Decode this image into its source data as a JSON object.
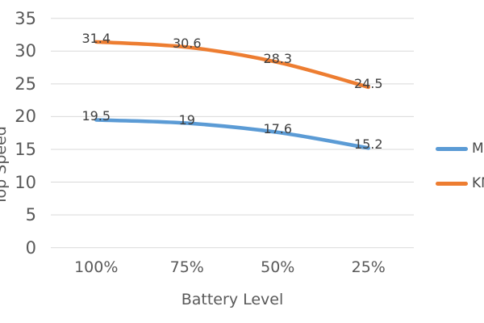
{
  "chart_data": {
    "type": "line",
    "xlabel": "Battery Level",
    "ylabel": "Top Speed",
    "categories": [
      "100%",
      "75%",
      "50%",
      "25%"
    ],
    "series": [
      {
        "name": "MPH",
        "values": [
          19.5,
          19,
          17.6,
          15.2
        ],
        "labels": [
          "19.5",
          "19",
          "17.6",
          "15.2"
        ],
        "color": "#5B9BD5"
      },
      {
        "name": "KMH",
        "values": [
          31.4,
          30.6,
          28.3,
          24.5
        ],
        "labels": [
          "31.4",
          "30.6",
          "28.3",
          "24.5"
        ],
        "color": "#ED7D31"
      }
    ],
    "ylim": [
      0,
      35
    ],
    "yticks": [
      0,
      5,
      10,
      15,
      20,
      25,
      30,
      35
    ],
    "grid": true,
    "smooth": true,
    "data_labels": true,
    "legend_position": "right"
  },
  "colors": {
    "gridline": "#D9D9D9",
    "tick_text": "#595959",
    "data_label_text": "#3F3F3F",
    "legend_text": "#4A4A4A",
    "background": "#FFFFFF"
  }
}
